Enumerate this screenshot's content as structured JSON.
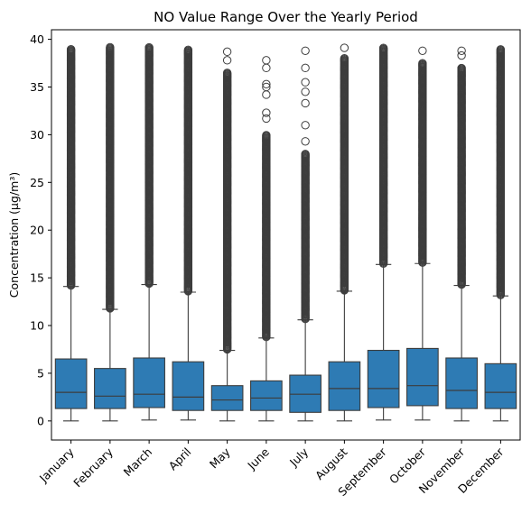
{
  "chart_data": {
    "type": "box",
    "title": "NO Value Range Over the Yearly Period",
    "xlabel": "",
    "ylabel": "Concentration (μg/m³)",
    "ylim": [
      -2,
      41
    ],
    "yticks": [
      0,
      5,
      10,
      15,
      20,
      25,
      30,
      35,
      40
    ],
    "grid": false,
    "box_color": "#2e7bb4",
    "line_color": "#3d3d3d",
    "categories": [
      "January",
      "February",
      "March",
      "April",
      "May",
      "June",
      "July",
      "August",
      "September",
      "October",
      "November",
      "December"
    ],
    "boxes": [
      {
        "min": 0.0,
        "q1": 1.3,
        "median": 3.0,
        "q3": 6.5,
        "max": 14.1,
        "outliers_range": [
          14.2,
          39.0
        ],
        "sparse_outliers": []
      },
      {
        "min": 0.0,
        "q1": 1.3,
        "median": 2.6,
        "q3": 5.5,
        "max": 11.7,
        "outliers_range": [
          11.8,
          39.2
        ],
        "sparse_outliers": []
      },
      {
        "min": 0.1,
        "q1": 1.4,
        "median": 2.8,
        "q3": 6.6,
        "max": 14.3,
        "outliers_range": [
          14.4,
          39.2
        ],
        "sparse_outliers": []
      },
      {
        "min": 0.1,
        "q1": 1.1,
        "median": 2.5,
        "q3": 6.2,
        "max": 13.5,
        "outliers_range": [
          13.6,
          38.9
        ],
        "sparse_outliers": []
      },
      {
        "min": 0.0,
        "q1": 1.1,
        "median": 2.2,
        "q3": 3.7,
        "max": 7.4,
        "outliers_range": [
          7.5,
          36.5
        ],
        "sparse_outliers": [
          37.8,
          38.7
        ]
      },
      {
        "min": 0.0,
        "q1": 1.1,
        "median": 2.4,
        "q3": 4.2,
        "max": 8.7,
        "outliers_range": [
          8.8,
          30.0
        ],
        "sparse_outliers": [
          31.7,
          32.3,
          34.2,
          35.0,
          35.3,
          37.0,
          37.8
        ]
      },
      {
        "min": 0.0,
        "q1": 0.9,
        "median": 2.8,
        "q3": 4.8,
        "max": 10.6,
        "outliers_range": [
          10.7,
          28.0
        ],
        "sparse_outliers": [
          29.3,
          31.0,
          33.3,
          34.5,
          35.5,
          37.0,
          38.8
        ]
      },
      {
        "min": 0.0,
        "q1": 1.1,
        "median": 3.4,
        "q3": 6.2,
        "max": 13.6,
        "outliers_range": [
          13.7,
          38.0
        ],
        "sparse_outliers": [
          39.1
        ]
      },
      {
        "min": 0.1,
        "q1": 1.4,
        "median": 3.4,
        "q3": 7.4,
        "max": 16.4,
        "outliers_range": [
          16.5,
          39.1
        ],
        "sparse_outliers": []
      },
      {
        "min": 0.1,
        "q1": 1.6,
        "median": 3.7,
        "q3": 7.6,
        "max": 16.5,
        "outliers_range": [
          16.6,
          37.5
        ],
        "sparse_outliers": [
          38.8
        ]
      },
      {
        "min": 0.0,
        "q1": 1.3,
        "median": 3.2,
        "q3": 6.6,
        "max": 14.2,
        "outliers_range": [
          14.3,
          37.0
        ],
        "sparse_outliers": [
          38.3,
          38.8
        ]
      },
      {
        "min": 0.0,
        "q1": 1.3,
        "median": 3.0,
        "q3": 6.0,
        "max": 13.1,
        "outliers_range": [
          13.2,
          39.0
        ],
        "sparse_outliers": []
      }
    ]
  }
}
